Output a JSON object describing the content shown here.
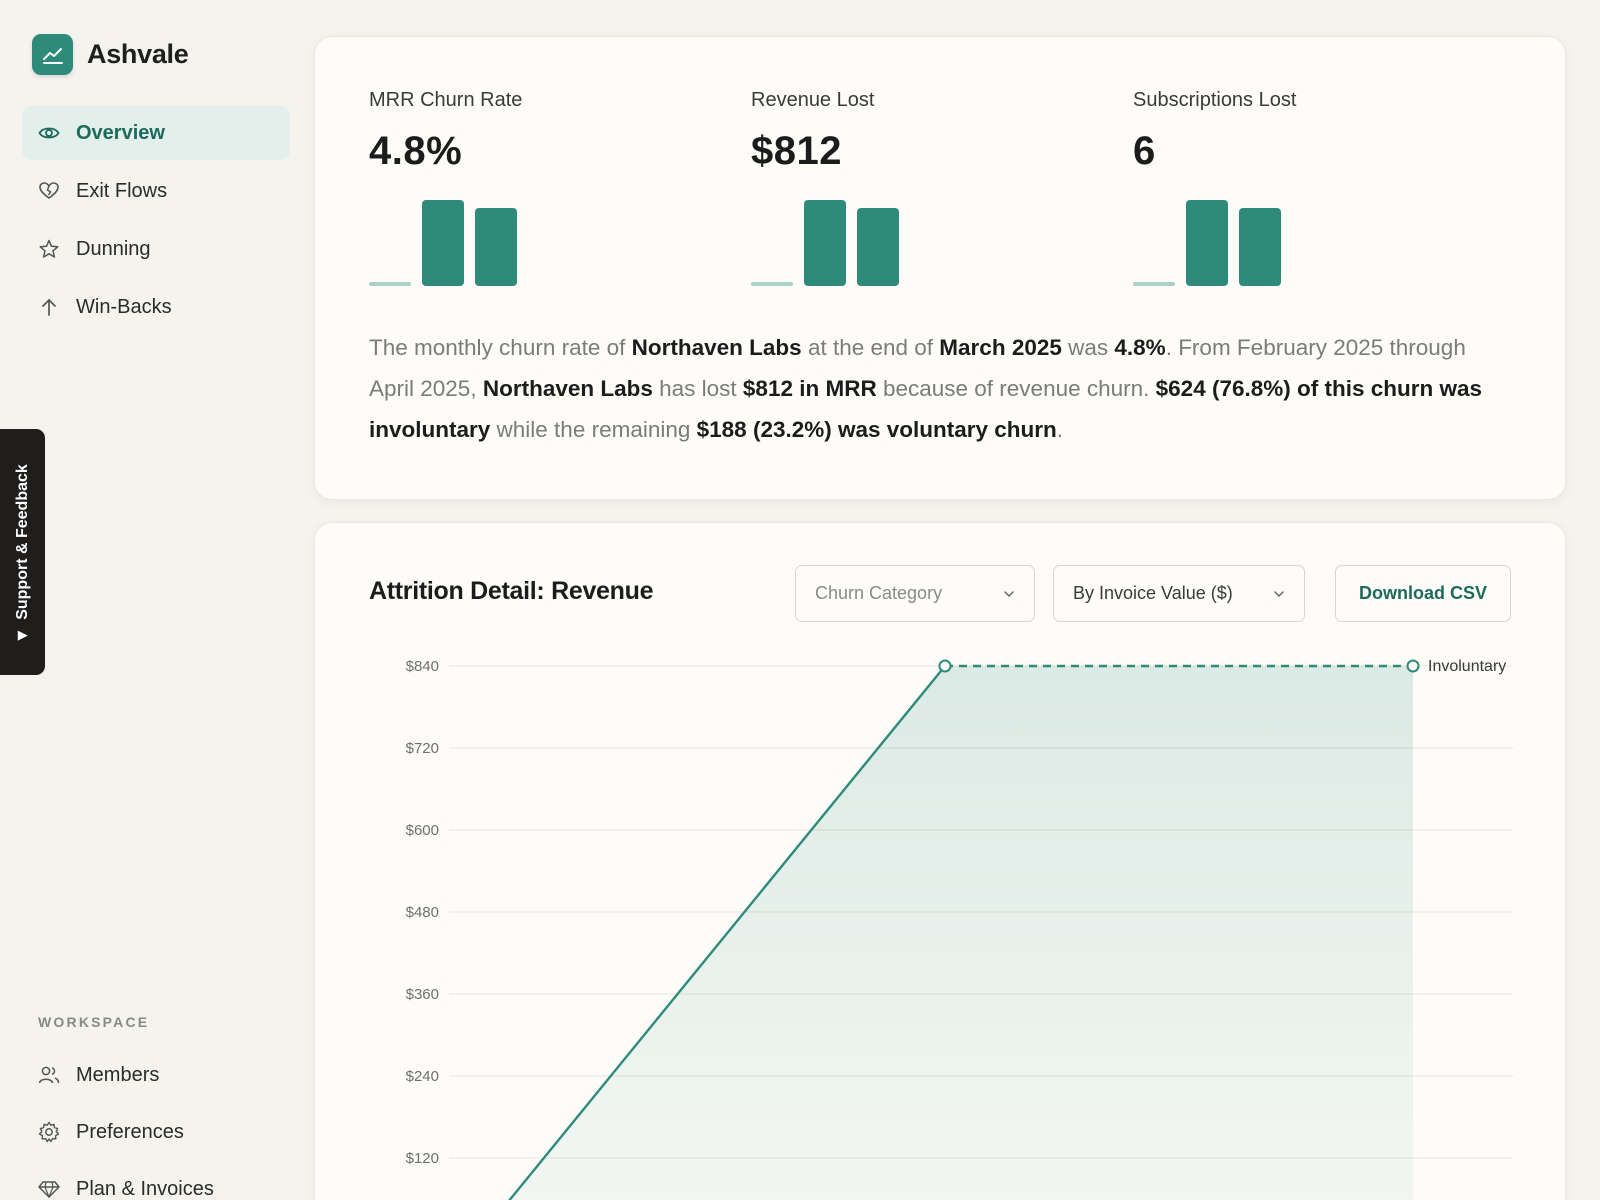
{
  "brand": {
    "name": "Ashvale",
    "logo_icon": "trend-chart-icon",
    "accent": "#2e8b7a"
  },
  "nav": [
    {
      "label": "Overview",
      "icon": "eye-icon",
      "active": true
    },
    {
      "label": "Exit Flows",
      "icon": "heart-broken-icon",
      "active": false
    },
    {
      "label": "Dunning",
      "icon": "star-icon",
      "active": false
    },
    {
      "label": "Win-Backs",
      "icon": "arrow-up-icon",
      "active": false
    }
  ],
  "workspace": {
    "label": "WORKSPACE",
    "items": [
      {
        "label": "Members",
        "icon": "users-icon"
      },
      {
        "label": "Preferences",
        "icon": "gear-icon"
      },
      {
        "label": "Plan & Invoices",
        "icon": "diamond-icon"
      }
    ]
  },
  "feedback": {
    "label": "Support & Feedback"
  },
  "metrics": [
    {
      "label": "MRR Churn Rate",
      "value": "4.8%"
    },
    {
      "label": "Revenue Lost",
      "value": "$812"
    },
    {
      "label": "Subscriptions Lost",
      "value": "6"
    }
  ],
  "summary": {
    "p1": "The monthly churn rate of ",
    "b1": "Northaven Labs",
    "p2": " at the end of ",
    "b2": "March 2025",
    "p3": " was ",
    "b3": "4.8%",
    "p4": ". From February 2025 through April 2025, ",
    "b4": "Northaven Labs",
    "p5": " has lost ",
    "b5": "$812 in MRR",
    "p6": " because of revenue churn. ",
    "b6": "$624 (76.8%) of this churn was involuntary",
    "p7": " while the remaining ",
    "b7": "$188 (23.2%) was voluntary churn",
    "p8": "."
  },
  "detail": {
    "title": "Attrition Detail: Revenue",
    "category_select": {
      "placeholder": "Churn Category"
    },
    "value_select": {
      "value": "By Invoice Value ($)"
    },
    "download_label": "Download CSV"
  },
  "chart_data": {
    "type": "area",
    "y_ticks": [
      "$840",
      "$720",
      "$600",
      "$480",
      "$360",
      "$240",
      "$120"
    ],
    "ylim": [
      0,
      840
    ],
    "series": [
      {
        "name": "Involuntary",
        "points": [
          [
            0,
            0
          ],
          [
            1,
            840
          ],
          [
            2,
            840
          ]
        ],
        "color": "#2e8b7a"
      }
    ],
    "grid": true,
    "legend": "right-inline"
  }
}
